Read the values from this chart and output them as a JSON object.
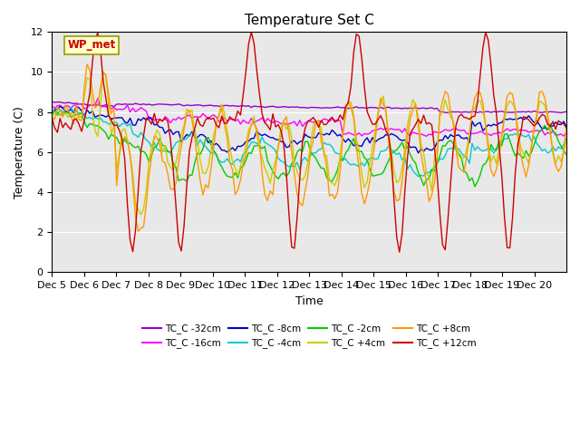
{
  "title": "Temperature Set C",
  "xlabel": "Time",
  "ylabel": "Temperature (C)",
  "ylim": [
    0,
    12
  ],
  "yticks": [
    0,
    2,
    4,
    6,
    8,
    10,
    12
  ],
  "x_labels": [
    "Dec 5",
    "Dec 6",
    "Dec 7",
    "Dec 8",
    "Dec 9",
    "Dec 10",
    "Dec 11",
    "Dec 12",
    "Dec 13",
    "Dec 14",
    "Dec 15",
    "Dec 16",
    "Dec 17",
    "Dec 18",
    "Dec 19",
    "Dec 20"
  ],
  "background_color": "#e8e8e8",
  "legend_box_color": "#ffffcc",
  "legend_box_edge": "#999900",
  "annotation_text": "WP_met",
  "annotation_color": "#cc0000",
  "series_colors": {
    "TC_C -32cm": "#9900cc",
    "TC_C -16cm": "#ff00ff",
    "TC_C -8cm": "#0000cc",
    "TC_C -4cm": "#00cccc",
    "TC_C -2cm": "#00cc00",
    "TC_C +4cm": "#cccc00",
    "TC_C +8cm": "#ff9900",
    "TC_C +12cm": "#cc0000"
  }
}
